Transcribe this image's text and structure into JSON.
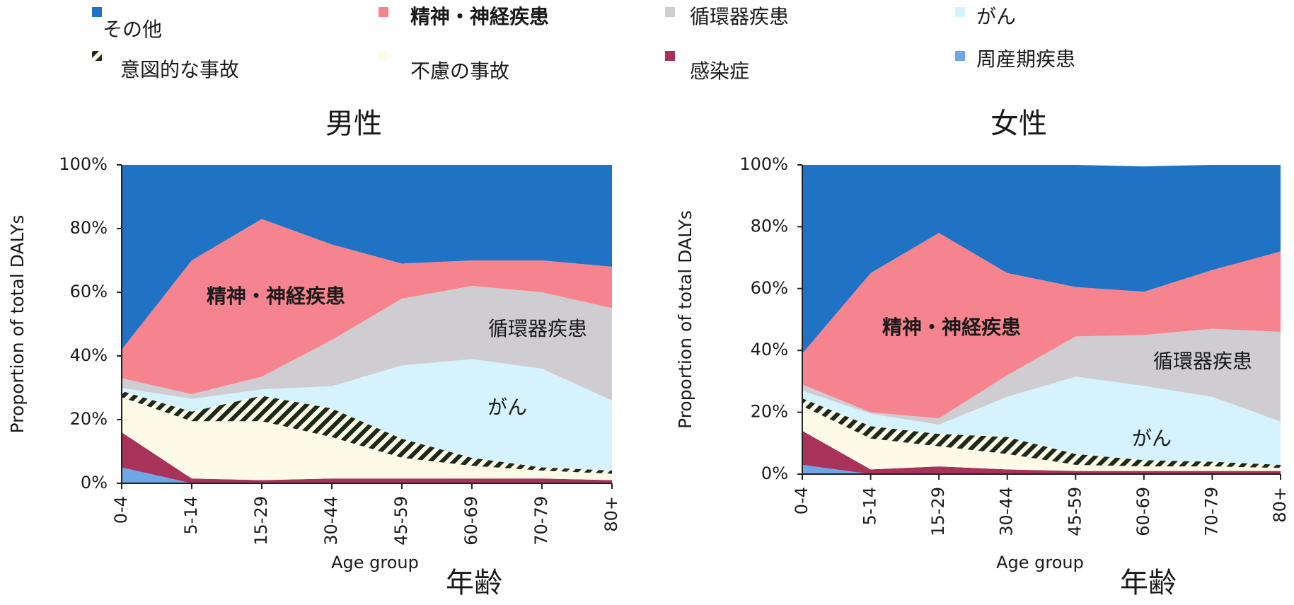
{
  "legend": {
    "items": [
      {
        "label": "その他",
        "color": "#1f72c4",
        "swatch": "square",
        "bold": false
      },
      {
        "label": "精神・神経疾患",
        "color": "#f6848e",
        "swatch": "square",
        "bold": true
      },
      {
        "label": "循環器疾患",
        "color": "#cfcdd2",
        "swatch": "square",
        "bold": false
      },
      {
        "label": "がん",
        "color": "#d6f3fd",
        "swatch": "square",
        "bold": false
      },
      {
        "label": "意図的な事故",
        "color": "#1d2a1b",
        "swatch": "hatch",
        "bold": false
      },
      {
        "label": "不慮の事故",
        "color": "#fdfbe8",
        "swatch": "square",
        "bold": false
      },
      {
        "label": "感染症",
        "color": "#a9325a",
        "swatch": "square",
        "bold": false
      },
      {
        "label": "周産期疾患",
        "color": "#6fa7e6",
        "swatch": "square",
        "bold": false
      }
    ]
  },
  "chart_data": [
    {
      "type": "area",
      "stacked": true,
      "title": "男性",
      "xlabel": "Age group",
      "xlabel_jp": "年齢",
      "ylabel": "Proportion of total DALYs",
      "ylim": [
        0,
        100
      ],
      "yticks": [
        "0%",
        "20%",
        "40%",
        "60%",
        "80%",
        "100%"
      ],
      "categories": [
        "0-4",
        "5-14",
        "15-29",
        "30-44",
        "45-59",
        "60-69",
        "70-79",
        "80+"
      ],
      "series": [
        {
          "name": "周産期疾患",
          "values": [
            5,
            0,
            0,
            0,
            0,
            0,
            0,
            0
          ]
        },
        {
          "name": "感染症",
          "values": [
            11,
            1.5,
            1,
            1.5,
            1.5,
            1.5,
            1.5,
            1
          ]
        },
        {
          "name": "不慮の事故",
          "values": [
            11,
            18,
            18.5,
            13,
            6.5,
            4,
            2.5,
            2
          ]
        },
        {
          "name": "意図的な事故",
          "values": [
            2,
            3,
            8,
            9,
            6,
            2.5,
            1,
            1
          ]
        },
        {
          "name": "がん",
          "values": [
            1,
            4,
            2,
            7,
            23,
            31,
            31,
            22
          ]
        },
        {
          "name": "循環器疾患",
          "values": [
            3,
            1.5,
            4,
            14.5,
            21,
            23,
            24,
            29
          ]
        },
        {
          "name": "精神・神経疾患",
          "values": [
            9,
            42,
            49.5,
            30,
            11,
            8,
            10,
            13
          ]
        },
        {
          "name": "その他",
          "values": [
            58,
            30,
            17,
            25,
            31,
            30,
            30,
            32
          ]
        }
      ],
      "annotations": [
        {
          "text": "精神・神経疾患",
          "bold": true
        },
        {
          "text": "循環器疾患",
          "bold": false
        },
        {
          "text": "がん",
          "bold": false
        }
      ]
    },
    {
      "type": "area",
      "stacked": true,
      "title": "女性",
      "xlabel": "Age group",
      "xlabel_jp": "年齢",
      "ylabel": "Proportion of total DALYs",
      "ylim": [
        0,
        100
      ],
      "yticks": [
        "0%",
        "20%",
        "40%",
        "60%",
        "80%",
        "100%"
      ],
      "categories": [
        "0-4",
        "5-14",
        "15-29",
        "30-44",
        "45-59",
        "60-69",
        "70-79",
        "80+"
      ],
      "series": [
        {
          "name": "周産期疾患",
          "values": [
            3,
            0,
            0,
            0,
            0,
            0,
            0,
            0
          ]
        },
        {
          "name": "感染症",
          "values": [
            11,
            1.5,
            2.5,
            1.5,
            1,
            1,
            1,
            1
          ]
        },
        {
          "name": "不慮の事故",
          "values": [
            8,
            10,
            6.5,
            5,
            2,
            1.5,
            1.5,
            1
          ]
        },
        {
          "name": "意図的な事故",
          "values": [
            2.5,
            4,
            4,
            5.5,
            3.5,
            2,
            1.5,
            1
          ]
        },
        {
          "name": "がん",
          "values": [
            2.5,
            4,
            3,
            13,
            25,
            24,
            21,
            14
          ]
        },
        {
          "name": "循環器疾患",
          "values": [
            2,
            0.5,
            2,
            7,
            13,
            16.5,
            22,
            29
          ]
        },
        {
          "name": "精神・神経疾患",
          "values": [
            10,
            45,
            60,
            33,
            16,
            14,
            19,
            26
          ]
        },
        {
          "name": "その他",
          "values": [
            61,
            35,
            22,
            35,
            39.5,
            40.5,
            34,
            28
          ]
        }
      ],
      "annotations": [
        {
          "text": "精神・神経疾患",
          "bold": true
        },
        {
          "text": "循環器疾患",
          "bold": false
        },
        {
          "text": "がん",
          "bold": false
        }
      ]
    }
  ]
}
